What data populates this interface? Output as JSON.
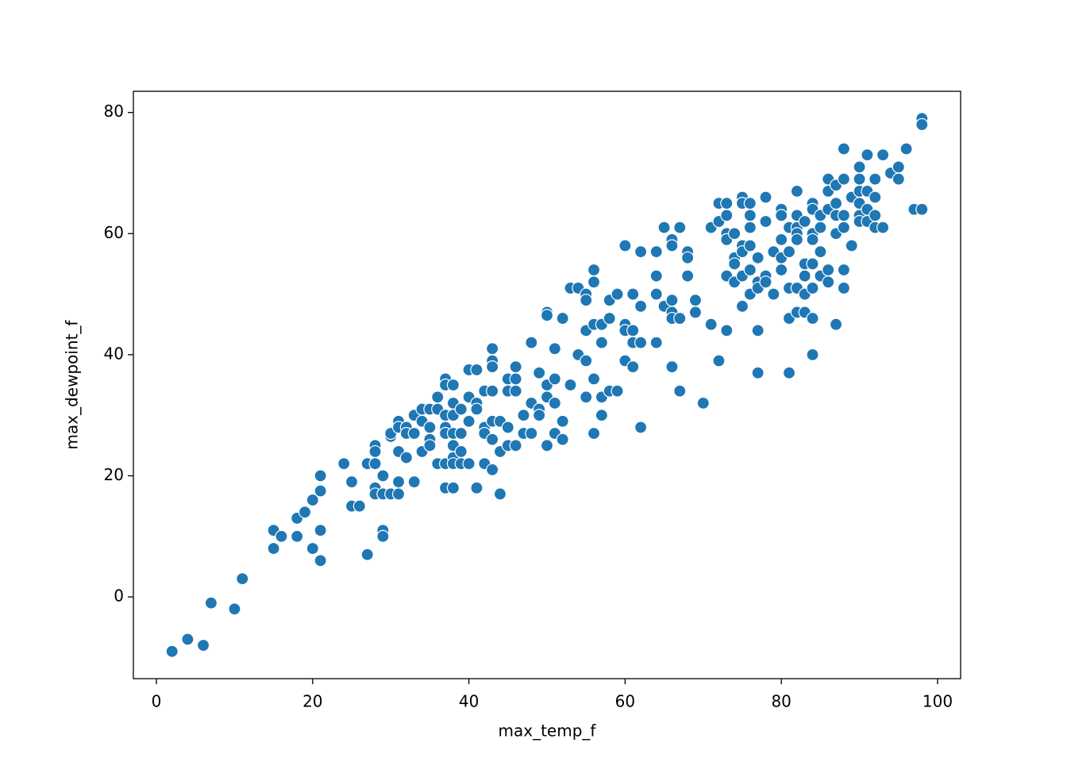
{
  "chart_data": {
    "type": "scatter",
    "xlabel": "max_temp_f",
    "ylabel": "max_dewpoint_f",
    "color": "#1f77b4",
    "xlim": [
      -2.95,
      102.95
    ],
    "xticks": [
      0,
      20,
      40,
      60,
      80,
      100
    ],
    "ylim": [
      -13.5,
      83.5
    ],
    "yticks": [
      0,
      20,
      40,
      60,
      80
    ],
    "x": [
      2,
      4,
      6,
      7,
      10,
      11,
      15,
      15,
      16,
      18,
      18,
      19,
      20,
      20,
      21,
      21,
      21,
      21,
      24,
      25,
      25,
      26,
      27,
      27,
      28,
      28,
      28,
      28,
      28,
      29,
      29,
      29,
      29,
      30,
      30,
      30,
      31,
      31,
      31,
      31,
      31,
      32,
      32,
      32,
      33,
      33,
      33,
      34,
      34,
      34,
      35,
      35,
      35,
      35,
      36,
      36,
      36,
      37,
      37,
      37,
      37,
      37,
      37,
      37,
      38,
      38,
      38,
      38,
      38,
      38,
      38,
      38,
      39,
      39,
      39,
      39,
      40,
      40,
      40,
      40,
      41,
      41,
      41,
      41,
      42,
      42,
      42,
      42,
      43,
      43,
      43,
      43,
      43,
      43,
      43,
      44,
      44,
      44,
      45,
      45,
      45,
      45,
      46,
      46,
      46,
      46,
      47,
      47,
      48,
      48,
      48,
      49,
      49,
      49,
      50,
      50,
      50,
      50,
      50,
      51,
      51,
      51,
      51,
      52,
      52,
      52,
      53,
      53,
      54,
      54,
      55,
      55,
      55,
      55,
      55,
      56,
      56,
      56,
      56,
      56,
      57,
      57,
      57,
      57,
      58,
      58,
      58,
      59,
      59,
      60,
      60,
      60,
      60,
      61,
      61,
      61,
      61,
      62,
      62,
      62,
      62,
      64,
      64,
      64,
      64,
      65,
      65,
      66,
      66,
      66,
      66,
      66,
      66,
      67,
      67,
      67,
      68,
      68,
      68,
      69,
      69,
      70,
      71,
      71,
      72,
      72,
      72,
      73,
      73,
      73,
      73,
      73,
      73,
      74,
      74,
      74,
      74,
      75,
      75,
      75,
      75,
      75,
      75,
      76,
      76,
      76,
      76,
      76,
      76,
      77,
      77,
      77,
      77,
      77,
      78,
      78,
      78,
      78,
      79,
      79,
      80,
      80,
      80,
      80,
      80,
      81,
      81,
      81,
      81,
      81,
      82,
      82,
      82,
      82,
      82,
      82,
      82,
      83,
      83,
      83,
      83,
      83,
      84,
      84,
      84,
      84,
      84,
      84,
      84,
      84,
      85,
      85,
      85,
      85,
      86,
      86,
      86,
      86,
      86,
      87,
      87,
      87,
      87,
      87,
      88,
      88,
      88,
      88,
      88,
      88,
      89,
      89,
      90,
      90,
      90,
      90,
      90,
      90,
      91,
      91,
      91,
      91,
      92,
      92,
      92,
      92,
      93,
      93,
      94,
      95,
      95,
      96,
      97,
      98,
      98,
      98
    ],
    "values": [
      -9,
      -7,
      -8,
      -1,
      -2,
      3,
      11,
      8,
      10,
      13,
      10,
      14,
      16,
      8,
      20,
      17.5,
      11,
      6,
      22,
      19,
      15,
      15,
      22,
      7,
      25,
      24,
      22,
      18,
      17,
      20,
      17,
      11,
      10,
      26.5,
      27,
      17,
      29,
      28,
      24,
      19,
      17,
      28,
      27,
      23,
      30,
      27,
      19,
      31,
      29,
      24,
      31,
      28,
      26,
      25,
      33,
      31,
      22,
      36,
      35,
      30,
      28,
      27,
      22,
      18,
      35,
      32,
      30,
      27,
      25,
      23,
      22,
      18,
      31,
      27,
      24,
      22,
      33,
      29,
      22,
      37.5,
      37.5,
      32,
      31,
      18,
      34,
      28,
      27,
      22,
      41,
      39,
      38,
      34,
      29,
      26,
      21,
      29,
      24,
      17,
      36,
      34,
      28,
      25,
      38,
      36,
      34,
      25,
      30,
      27,
      42,
      32,
      27,
      37,
      31,
      30,
      47,
      46.5,
      35,
      33,
      25,
      41,
      36,
      32,
      27,
      46,
      29,
      26,
      51,
      35,
      51,
      40,
      50,
      49,
      44,
      39,
      33,
      54,
      52,
      45,
      36,
      27,
      45,
      42,
      33,
      30,
      49,
      46,
      34,
      50,
      34,
      58,
      45,
      44,
      39,
      50,
      44,
      42,
      38,
      57,
      48,
      42,
      28,
      57,
      53,
      50,
      42,
      61,
      48,
      59,
      58,
      49,
      47,
      46,
      38,
      61,
      46,
      34,
      57,
      56,
      53,
      49,
      47,
      32,
      61,
      45,
      65,
      62,
      39,
      65,
      63,
      60,
      59,
      53,
      44,
      60,
      56,
      55,
      52,
      66,
      65,
      58,
      57,
      53,
      48,
      65,
      63,
      61,
      58,
      54,
      50,
      56,
      52,
      51,
      44,
      37,
      66,
      62,
      53,
      52,
      57,
      50,
      64,
      63,
      59,
      56,
      54,
      61,
      57,
      51,
      46,
      37,
      67,
      63,
      61,
      60,
      59,
      51,
      47,
      62,
      55,
      53,
      50,
      47,
      65,
      64,
      60,
      59,
      55,
      51,
      46,
      40,
      63,
      61,
      57,
      53,
      69,
      67,
      64,
      54,
      52,
      68,
      65,
      63,
      60,
      45,
      74,
      69,
      63,
      61,
      54,
      51,
      66,
      58,
      71,
      69,
      67,
      65,
      63,
      62,
      73,
      67,
      64,
      62,
      69,
      66,
      63,
      61,
      73,
      61,
      70,
      71,
      69,
      74,
      64,
      79,
      78,
      64
    ]
  }
}
